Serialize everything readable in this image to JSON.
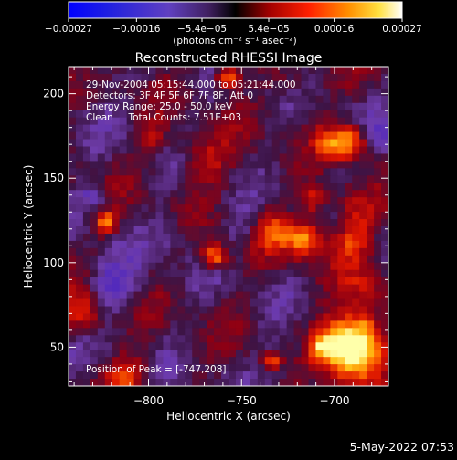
{
  "chart_data": {
    "type": "heatmap",
    "title": "Reconstructed RHESSI Image",
    "xlabel": "Heliocentric X (arcsec)",
    "ylabel": "Heliocentric Y (arcsec)",
    "xlim": [
      -843,
      -671
    ],
    "ylim": [
      27,
      216
    ],
    "x_ticks": [
      -800,
      -750,
      -700
    ],
    "x_tick_labels": [
      "−800",
      "−750",
      "−700"
    ],
    "y_ticks": [
      50,
      100,
      150,
      200
    ],
    "y_tick_labels": [
      "50",
      "100",
      "150",
      "200"
    ],
    "colorbar": {
      "range": [
        -0.00027,
        0.00027
      ],
      "tick_values": [
        -0.00027,
        -0.00016,
        -5.4e-05,
        5.4e-05,
        0.00016,
        0.00027
      ],
      "tick_labels": [
        "−0.00027",
        "−0.00016",
        "−5.4e−05",
        "5.4e−05",
        "0.00016",
        "0.00027"
      ],
      "units": "(photons cm⁻² s⁻¹ asec⁻²)",
      "placement": "top"
    },
    "annotations": [
      "29-Nov-2004 05:15:44.000 to 05:21:44.000",
      "Detectors: 3F 4F 5F 6F 7F 8F, Att 0",
      "Energy Range: 25.0 - 50.0 keV",
      "Clean     Total Counts: 7.51E+03"
    ],
    "peak_label": "Position of Peak = [-747,208]",
    "peak": [
      -747,
      208
    ],
    "grid": false
  },
  "timestamp": "5-May-2022 07:53",
  "colors": {
    "background": "#000000",
    "axes": "#ffffff",
    "colormap": [
      "#0000ff",
      "#5a1fb0",
      "#7a3aa0",
      "#6a1030",
      "#b00000",
      "#ff3000",
      "#ff8c00",
      "#ffd020",
      "#ffffff"
    ]
  }
}
